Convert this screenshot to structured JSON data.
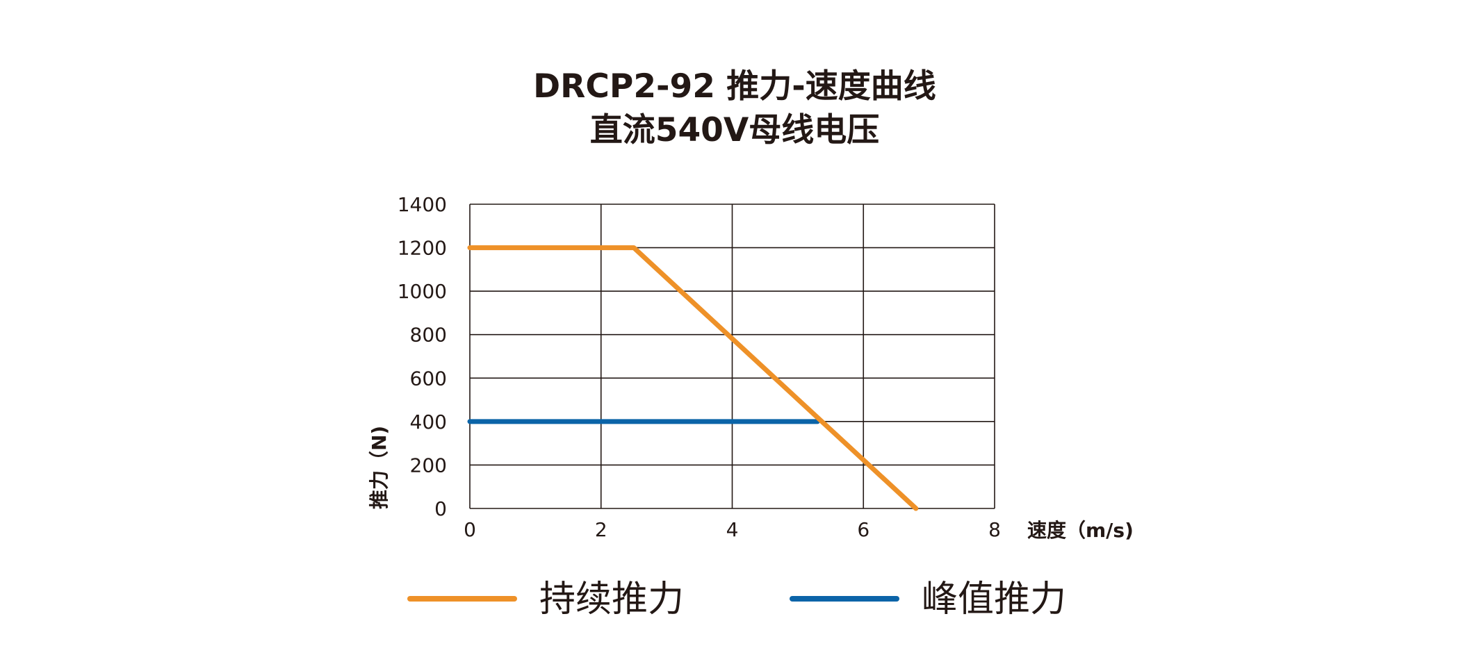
{
  "chart_data": {
    "type": "line",
    "title": "DRCP2-92 推力-速度曲线",
    "subtitle": "直流540V母线电压",
    "xlabel": "速度（m/s)",
    "ylabel": "推力（N)",
    "xlim": [
      0,
      8
    ],
    "ylim": [
      0,
      1400
    ],
    "x_ticks": [
      0,
      2,
      4,
      6,
      8
    ],
    "y_ticks": [
      0,
      200,
      400,
      600,
      800,
      1000,
      1200,
      1400
    ],
    "grid": true,
    "legend_position": "bottom",
    "series": [
      {
        "name": "持续推力",
        "color": "#EE9128",
        "points": [
          [
            0,
            1200
          ],
          [
            2.5,
            1200
          ],
          [
            6.8,
            0
          ]
        ]
      },
      {
        "name": "峰值推力",
        "color": "#0B64A8",
        "points": [
          [
            0,
            400
          ],
          [
            5.3,
            400
          ]
        ]
      }
    ]
  }
}
